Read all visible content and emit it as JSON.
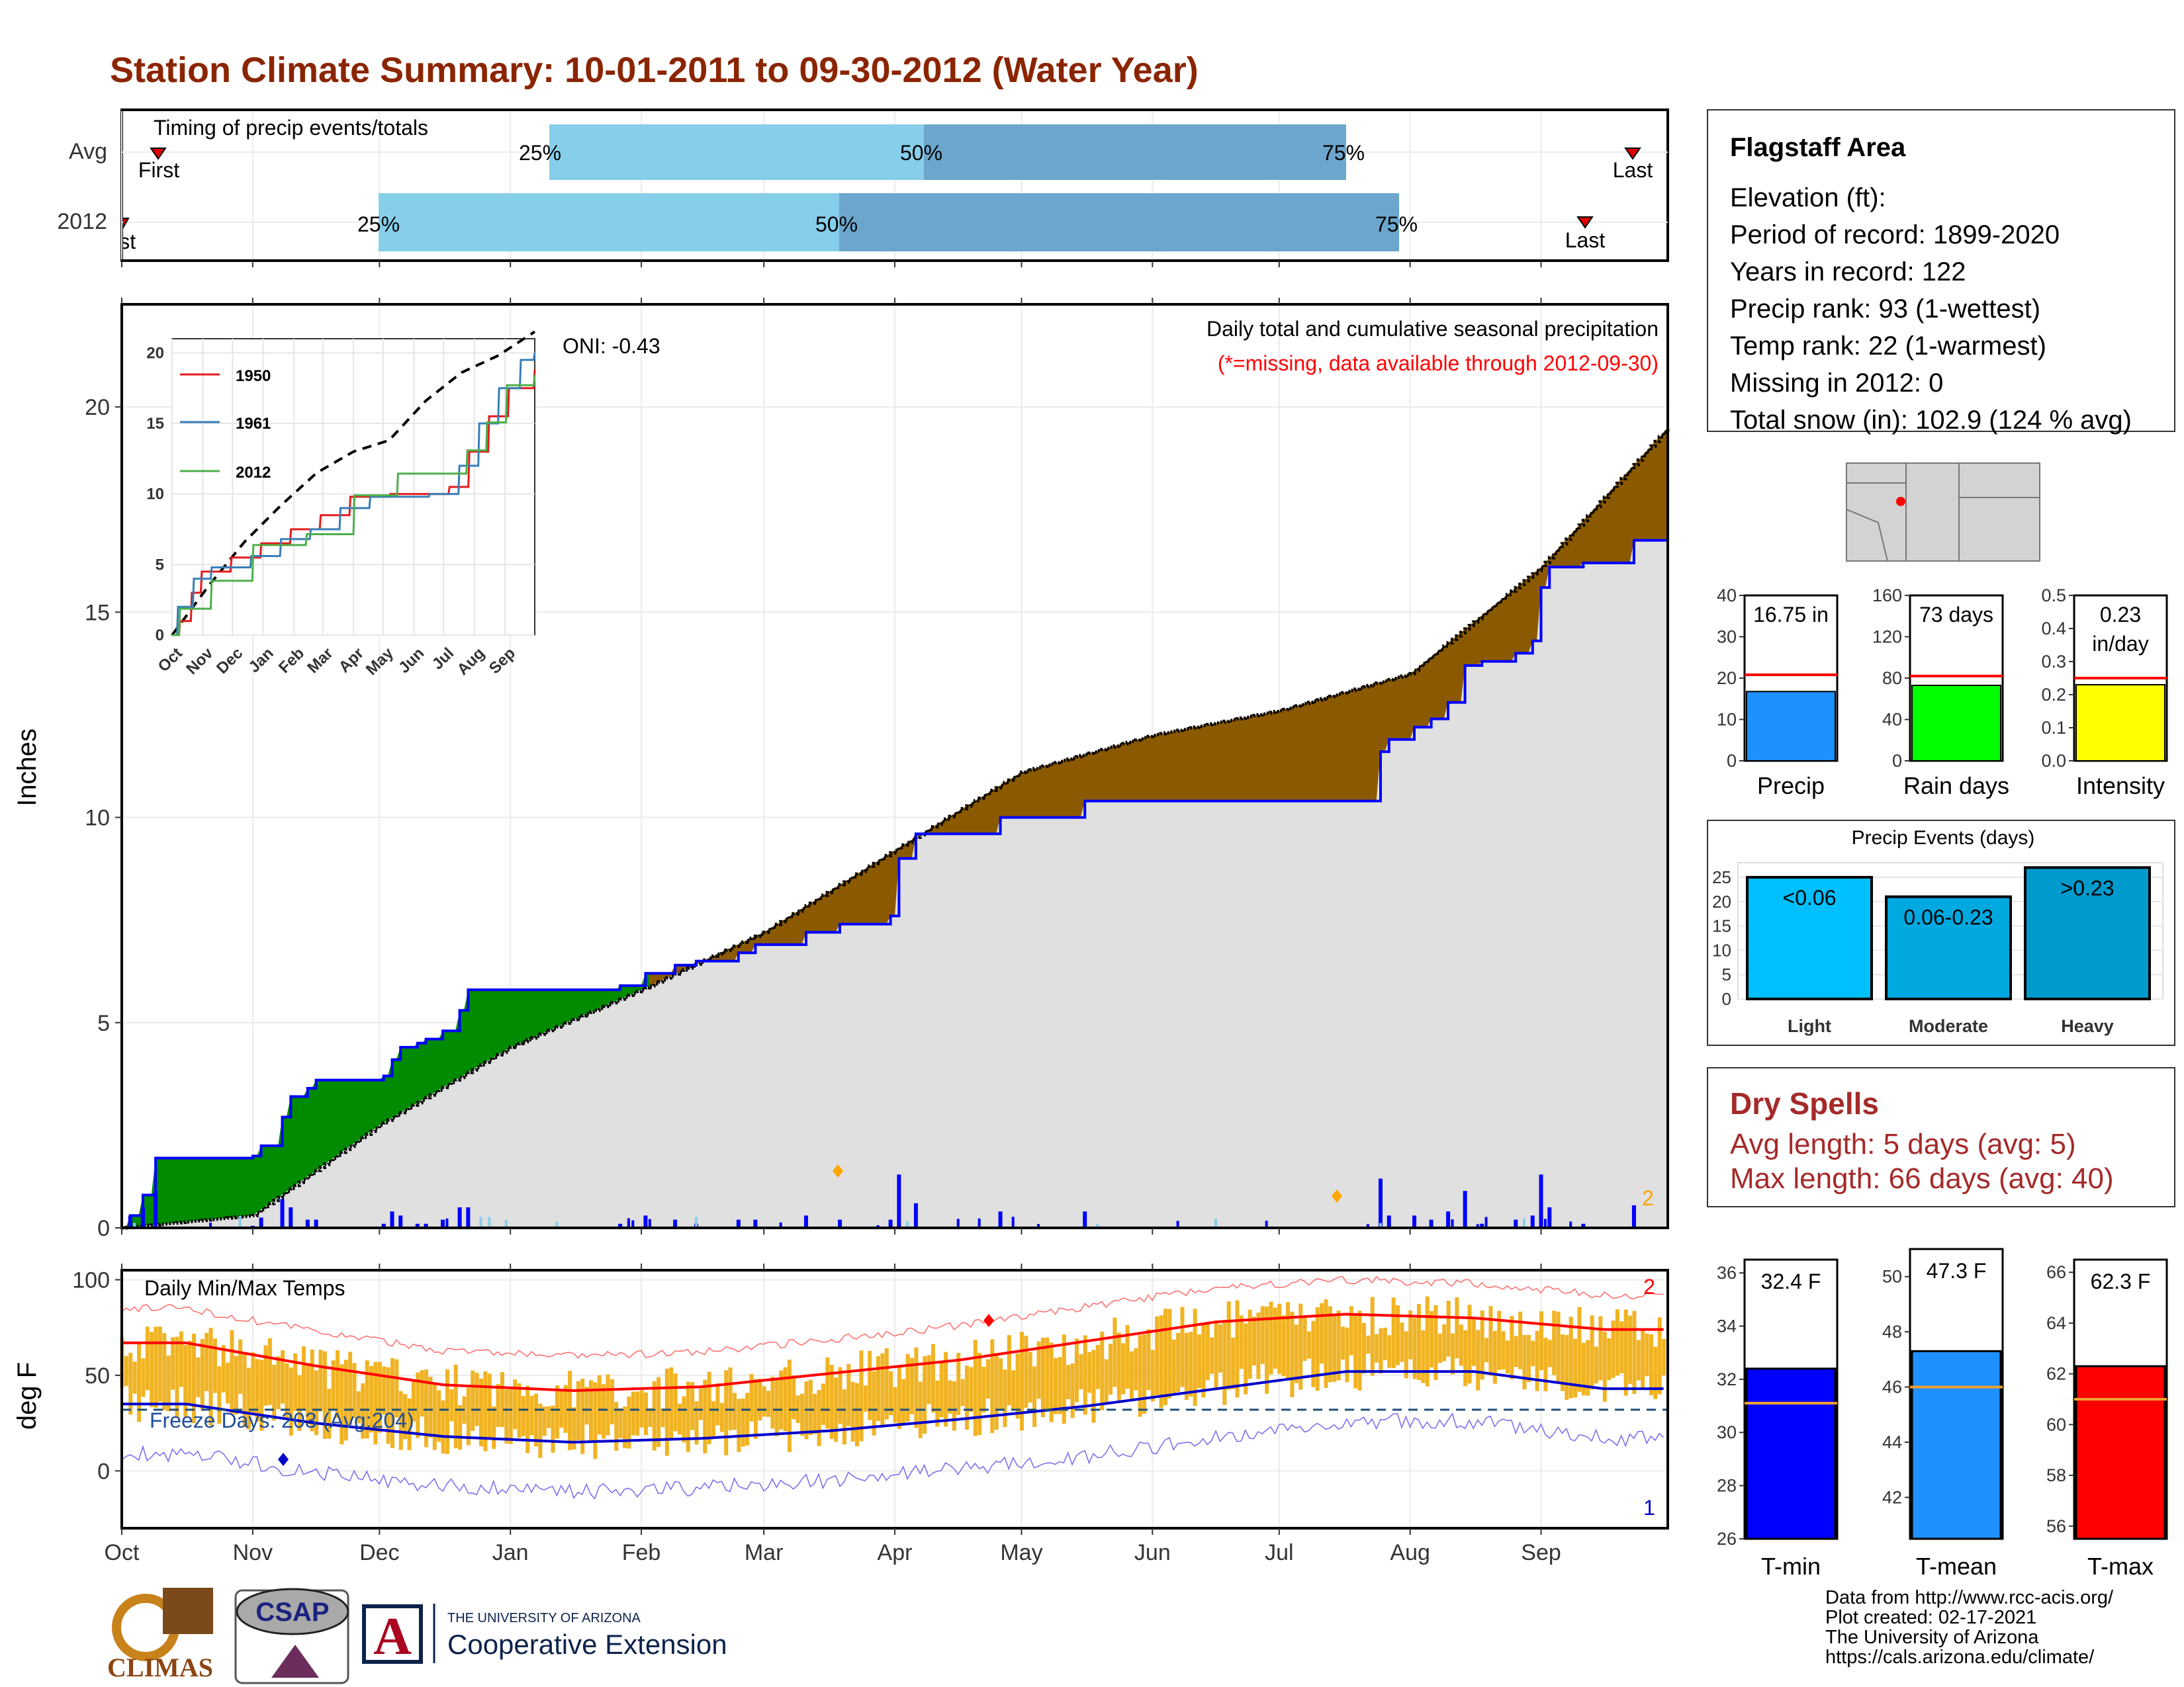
{
  "title": "Station Climate Summary: 10-01-2011 to 09-30-2012 (Water Year)",
  "timing": {
    "label": "Timing of precip events/totals",
    "rows": [
      {
        "name": "Avg",
        "first_label": "First",
        "last_label": "Last",
        "p25": "25%",
        "p50": "50%",
        "p75": "75%"
      },
      {
        "name": "2012",
        "first_label": "First",
        "last_label": "Last",
        "p25": "25%",
        "p50": "50%",
        "p75": "75%"
      }
    ]
  },
  "precip_panel": {
    "ylabel": "Inches",
    "yticks": [
      "0",
      "5",
      "10",
      "15",
      "20"
    ],
    "months": [
      "Oct",
      "Nov",
      "Dec",
      "Jan",
      "Feb",
      "Mar",
      "Apr",
      "May",
      "Jun",
      "Jul",
      "Aug",
      "Sep"
    ],
    "title_line1": "Daily total and cumulative seasonal precipitation",
    "title_line2": "(*=missing, data available through 2012-09-30)",
    "oni": "ONI: -0.43",
    "rank_marker": "2"
  },
  "inset": {
    "yticks": [
      "0",
      "5",
      "10",
      "15",
      "20"
    ],
    "months": [
      "Oct",
      "Nov",
      "Dec",
      "Jan",
      "Feb",
      "Mar",
      "Apr",
      "May",
      "Jun",
      "Jul",
      "Aug",
      "Sep"
    ],
    "legend": [
      {
        "name": "1950",
        "color": "#e41a1c"
      },
      {
        "name": "1961",
        "color": "#377eb8"
      },
      {
        "name": "2012",
        "color": "#4daf4a"
      }
    ]
  },
  "temp_panel": {
    "ylabel": "deg F",
    "yticks": [
      "0",
      "50",
      "100"
    ],
    "label": "Daily Min/Max Temps",
    "freeze": "Freeze Days: 203 (Avg:204)",
    "rank_max": "2",
    "rank_min": "1"
  },
  "info": {
    "station": "Flagstaff Area",
    "lines": [
      "Elevation (ft):",
      "Period of record: 1899-2020",
      "Years in record: 122",
      "Precip rank: 93 (1-wettest)",
      "Temp rank: 22 (1-warmest)",
      "Missing in 2012: 0",
      "Total snow (in): 102.9 (124 % avg)"
    ]
  },
  "summary_bars": [
    {
      "name": "Precip",
      "value": 16.75,
      "label": "16.75 in",
      "avg": 20.8,
      "ymax": 40,
      "ticks": [
        "0",
        "10",
        "20",
        "30",
        "40"
      ],
      "color": "#1e90ff"
    },
    {
      "name": "Rain days",
      "value": 73,
      "label": "73 days",
      "avg": 82,
      "ymax": 160,
      "ticks": [
        "0",
        "40",
        "80",
        "120",
        "160"
      ],
      "color": "#00ff00"
    },
    {
      "name": "Intensity",
      "value": 0.23,
      "label": "0.23",
      "label2": "in/day",
      "avg": 0.25,
      "ymax": 0.5,
      "ticks": [
        "0.0",
        "0.1",
        "0.2",
        "0.3",
        "0.4",
        "0.5"
      ],
      "color": "#ffff00"
    }
  ],
  "events": {
    "title": "Precip Events (days)",
    "ticks": [
      "0",
      "5",
      "10",
      "15",
      "20",
      "25"
    ],
    "bars": [
      {
        "name": "Light",
        "label": "<0.06",
        "value": 25,
        "color": "#00bfff"
      },
      {
        "name": "Moderate",
        "label": "0.06-0.23",
        "value": 21,
        "color": "#009acd"
      },
      {
        "name": "Heavy",
        "label": ">0.23",
        "value": 27,
        "color": "#009acd"
      }
    ]
  },
  "dry_spells": {
    "title": "Dry Spells",
    "avg": "Avg length: 5 days (avg: 5)",
    "max": "Max length: 66 days (avg: 40)"
  },
  "temp_bars": [
    {
      "name": "T-min",
      "value": 32.4,
      "label": "32.4 F",
      "avg": 31.1,
      "ymin": 26,
      "ymax": 36.5,
      "ticks": [
        26,
        28,
        30,
        32,
        34,
        36
      ],
      "color": "#0000ff"
    },
    {
      "name": "T-mean",
      "value": 47.3,
      "label": "47.3 F",
      "avg": 46.0,
      "ymin": 40.5,
      "ymax": 51,
      "ticks": [
        42,
        44,
        46,
        48,
        50
      ],
      "color": "#1e90ff"
    },
    {
      "name": "T-max",
      "value": 62.3,
      "label": "62.3 F",
      "avg": 61.0,
      "ymin": 55.5,
      "ymax": 66.5,
      "ticks": [
        56,
        58,
        60,
        62,
        64,
        66
      ],
      "color": "#ff0000"
    }
  ],
  "footer": [
    "Data from http://www.rcc-acis.org/",
    "Plot created: 02-17-2021",
    "The University of Arizona",
    "https://cals.arizona.edu/climate/"
  ],
  "logos": {
    "climas": "CLIMAS",
    "csap": "CSAP",
    "ua_small": "THE UNIVERSITY OF ARIZONA",
    "ua_big": "Cooperative Extension",
    "ua_letter": "A"
  },
  "chart_data": [
    {
      "type": "area",
      "title": "Daily total and cumulative seasonal precipitation",
      "ylabel": "Inches",
      "ylim": [
        0,
        22.5
      ],
      "x": [
        "Oct",
        "Nov",
        "Dec",
        "Jan",
        "Feb",
        "Mar",
        "Apr",
        "May",
        "Jun",
        "Jul",
        "Aug",
        "Sep"
      ],
      "series": [
        {
          "values": [
            0.3,
            2.5,
            4.4,
            5.8,
            7.2,
            9.2,
            11.1,
            12.0,
            12.6,
            13.5,
            16.1,
            19.5
          ]
        },
        {
          "values": [
            1.7,
            3.6,
            5.2,
            5.9,
            6.5,
            7.5,
            10.0,
            10.4,
            10.4,
            10.4,
            13.7,
            16.75
          ]
        }
      ]
    },
    {
      "type": "line",
      "title": "Daily Min/Max Temps",
      "ylabel": "deg F",
      "ylim": [
        -30,
        100
      ],
      "x": [
        "Oct",
        "Nov",
        "Dec",
        "Jan",
        "Feb",
        "Mar",
        "Apr",
        "May",
        "Jun",
        "Jul",
        "Aug",
        "Sep"
      ],
      "series": [
        {
          "values": [
            67,
            55,
            45,
            42,
            44,
            51,
            58,
            68,
            78,
            82,
            80,
            74
          ]
        },
        {
          "values": [
            35,
            25,
            18,
            15,
            17,
            21,
            27,
            34,
            43,
            52,
            52,
            43
          ]
        }
      ],
      "freeze_threshold": 32
    },
    {
      "type": "bar",
      "categories": [
        "Precip",
        "Rain days",
        "Intensity"
      ],
      "values": [
        16.75,
        73,
        0.23
      ]
    },
    {
      "type": "bar",
      "title": "Precip Events (days)",
      "categories": [
        "Light",
        "Moderate",
        "Heavy"
      ],
      "values": [
        25,
        21,
        27
      ]
    },
    {
      "type": "bar",
      "categories": [
        "T-min",
        "T-mean",
        "T-max"
      ],
      "values": [
        32.4,
        47.3,
        62.3
      ]
    }
  ]
}
